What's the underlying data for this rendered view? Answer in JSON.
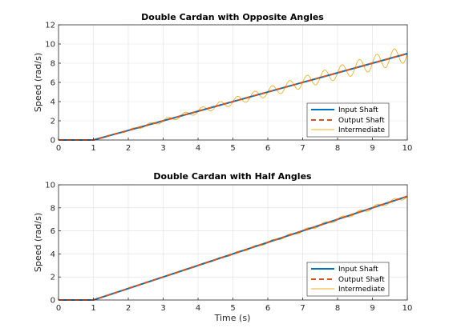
{
  "chart_data": [
    {
      "type": "line",
      "title": "Double Cardan with Opposite Angles",
      "xlabel": "",
      "ylabel": "Speed (rad/s)",
      "xlim": [
        0,
        10
      ],
      "ylim": [
        0,
        12
      ],
      "xticks": [
        "0",
        "1",
        "2",
        "3",
        "4",
        "5",
        "6",
        "7",
        "8",
        "9",
        "10"
      ],
      "yticks": [
        "0",
        "2",
        "4",
        "6",
        "8",
        "10",
        "12"
      ],
      "grid": true,
      "legend_position": "bottom-right",
      "series": [
        {
          "name": "Input Shaft",
          "color": "#0072bd",
          "style": "solid-thick",
          "x": [
            0,
            1,
            10
          ],
          "y": [
            0,
            0,
            9
          ]
        },
        {
          "name": "Output Shaft",
          "color": "#d95319",
          "style": "dashed",
          "x": [
            0,
            1,
            10
          ],
          "y": [
            0,
            0,
            9
          ]
        },
        {
          "name": "Intermediate",
          "color": "#edb120",
          "style": "solid-thin",
          "x": [
            0,
            1,
            10
          ],
          "y": [
            0,
            0,
            9
          ],
          "oscillation_amplitude_ratio": 0.1,
          "oscillation_period": 0.5
        }
      ]
    },
    {
      "type": "line",
      "title": "Double Cardan with Half Angles",
      "xlabel": "Time (s)",
      "ylabel": "Speed (rad/s)",
      "xlim": [
        0,
        10
      ],
      "ylim": [
        0,
        10
      ],
      "xticks": [
        "0",
        "1",
        "2",
        "3",
        "4",
        "5",
        "6",
        "7",
        "8",
        "9",
        "10"
      ],
      "yticks": [
        "0",
        "2",
        "4",
        "6",
        "8",
        "10"
      ],
      "grid": true,
      "legend_position": "bottom-right",
      "series": [
        {
          "name": "Input Shaft",
          "color": "#0072bd",
          "style": "solid-thick",
          "x": [
            0,
            1,
            10
          ],
          "y": [
            0,
            0,
            9
          ]
        },
        {
          "name": "Output Shaft",
          "color": "#d95319",
          "style": "dashed",
          "x": [
            0,
            1,
            10
          ],
          "y": [
            0,
            0,
            9
          ]
        },
        {
          "name": "Intermediate",
          "color": "#edb120",
          "style": "solid-thin",
          "x": [
            0,
            1,
            10
          ],
          "y": [
            0,
            0,
            9
          ],
          "oscillation_amplitude_ratio": 0.02,
          "oscillation_period": 0.5
        }
      ]
    }
  ]
}
